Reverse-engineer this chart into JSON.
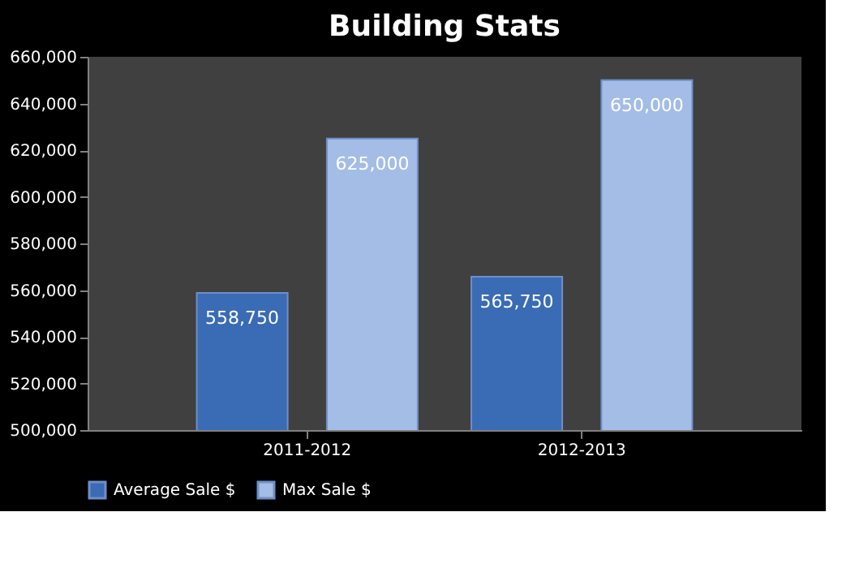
{
  "chart_data": {
    "type": "bar",
    "title": "Building Stats",
    "categories": [
      "2011-2012",
      "2012-2013"
    ],
    "series": [
      {
        "name": "Average Sale $",
        "color": "#3a6bb5",
        "values": [
          558750,
          565750
        ],
        "value_labels": [
          "558,750",
          "565,750"
        ]
      },
      {
        "name": "Max Sale $",
        "color": "#a4bde6",
        "values": [
          625000,
          650000
        ],
        "value_labels": [
          "625,000",
          "650,000"
        ]
      }
    ],
    "ylim": [
      500000,
      660000
    ],
    "yticks": [
      {
        "value": 500000,
        "label": "500,000"
      },
      {
        "value": 520000,
        "label": "520,000"
      },
      {
        "value": 540000,
        "label": "540,000"
      },
      {
        "value": 560000,
        "label": "560,000"
      },
      {
        "value": 580000,
        "label": "580,000"
      },
      {
        "value": 600000,
        "label": "600,000"
      },
      {
        "value": 620000,
        "label": "620,000"
      },
      {
        "value": 640000,
        "label": "640,000"
      },
      {
        "value": 660000,
        "label": "660,000"
      }
    ],
    "legend": "bottom",
    "grid": false
  }
}
